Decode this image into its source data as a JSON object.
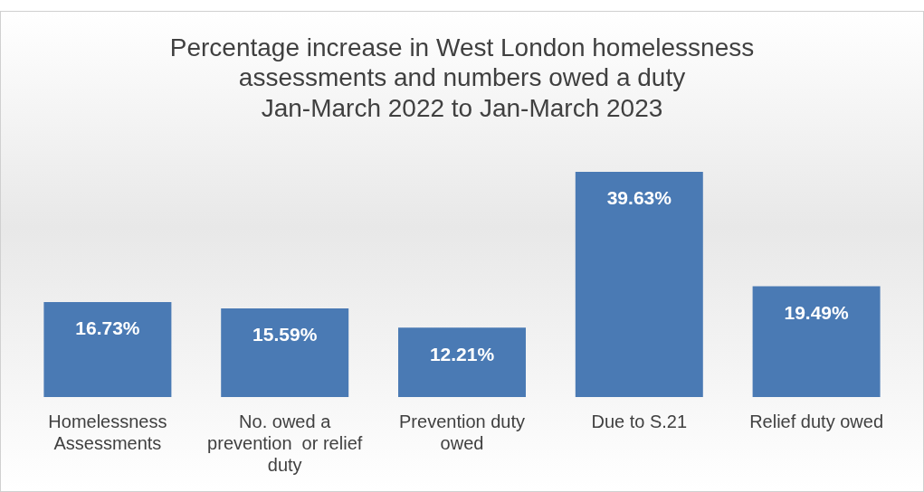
{
  "chart_data": {
    "type": "bar",
    "title": "Percentage increase in West London homelessness\nassessments and numbers owed a duty\nJan-March 2022 to Jan-March 2023",
    "categories": [
      "Homelessness Assessments",
      "No. owed a prevention  or relief duty",
      "Prevention duty owed",
      "Due to S.21",
      "Relief duty owed"
    ],
    "values": [
      16.73,
      15.59,
      12.21,
      39.63,
      19.49
    ],
    "value_labels": [
      "16.73%",
      "15.59%",
      "12.21%",
      "39.63%",
      "19.49%"
    ],
    "color": "#4a7ab4",
    "grid": false,
    "legend": false,
    "tick_labels": "x"
  }
}
